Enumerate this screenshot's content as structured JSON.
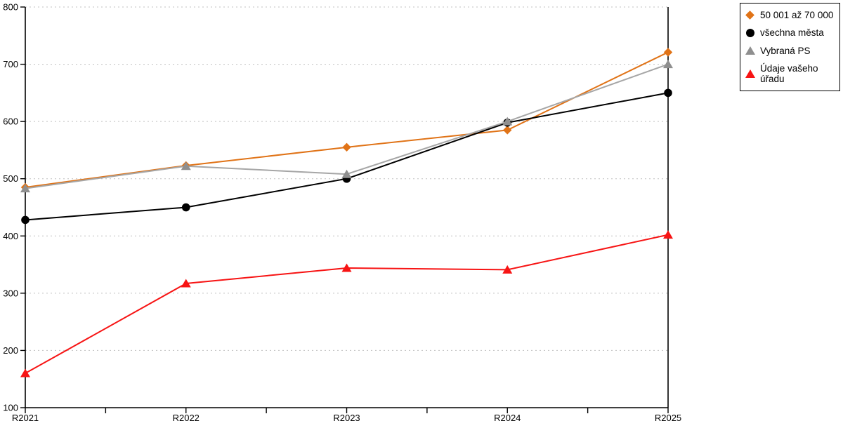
{
  "chart_data": {
    "type": "line",
    "title": "",
    "categories": [
      "R2021",
      "R2022",
      "R2023",
      "R2024",
      "R2025"
    ],
    "series": [
      {
        "name": "50 001 až 70 000",
        "marker": "diamond",
        "color": "#E07317",
        "values": [
          485,
          523,
          555,
          585,
          721
        ]
      },
      {
        "name": "všechna města",
        "marker": "circle",
        "color": "#000000",
        "values": [
          428,
          450,
          500,
          598,
          650
        ]
      },
      {
        "name": "Vybraná PS",
        "marker": "triangle",
        "color": "#8F8F8F",
        "line_color": "#A6A6A6",
        "values": [
          483,
          522,
          508,
          600,
          700
        ]
      },
      {
        "name": "Údaje vašeho úřadu",
        "marker": "triangle",
        "color": "#F71414",
        "values": [
          160,
          317,
          344,
          341,
          402
        ]
      }
    ],
    "xlabel": "",
    "ylabel": "",
    "ylim": [
      100,
      800
    ],
    "y_ticks": [
      100,
      200,
      300,
      400,
      500,
      600,
      700,
      800
    ],
    "x_minor_ticks_between_categories": true,
    "grid": {
      "horizontal": "dotted",
      "color": "#C0C0C0"
    },
    "axis_color": "#000000",
    "legend_position": "top-right"
  }
}
